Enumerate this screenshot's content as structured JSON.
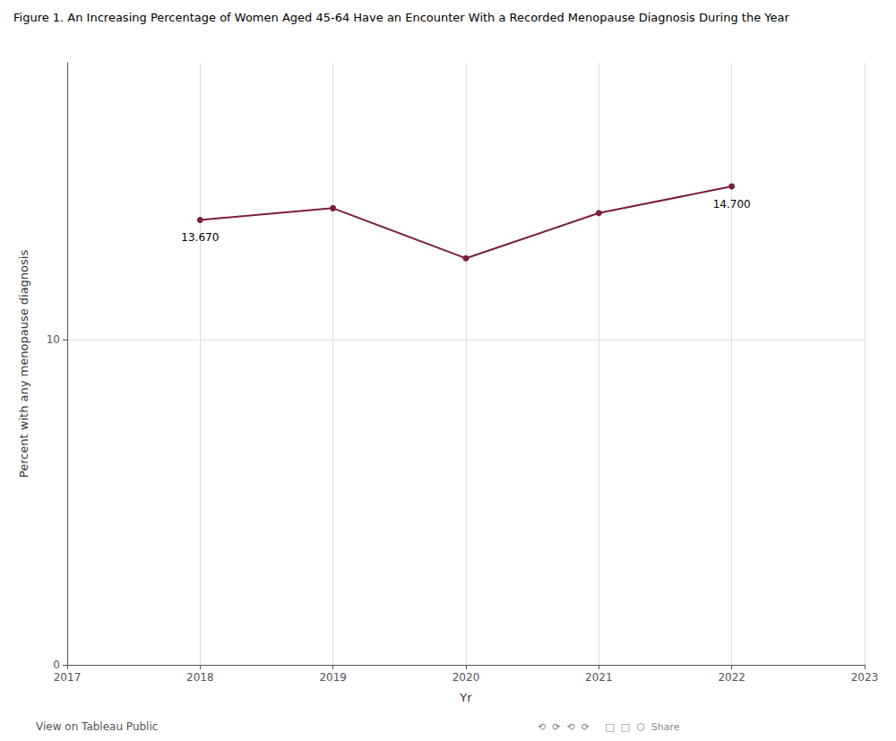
{
  "chart_data": {
    "type": "line",
    "title": "Figure 1. An Increasing Percentage of Women Aged 45-64 Have an Encounter With a Recorded Menopause Diagnosis During the Year",
    "xlabel": "Yr",
    "ylabel": "Percent with any menopause diagnosis",
    "x": [
      2018,
      2019,
      2020,
      2021,
      2022
    ],
    "values": [
      13.67,
      14.03,
      12.49,
      13.88,
      14.7
    ],
    "color": "#7B1F3A",
    "marker": "circle",
    "line_style": "solid",
    "xlim": [
      2017,
      2023
    ],
    "xticks": [
      2017,
      2018,
      2019,
      2020,
      2021,
      2022,
      2023
    ],
    "ylim": [
      0,
      18.5
    ],
    "yticks": [
      0,
      10
    ],
    "grid": true,
    "annotations": [
      {
        "x": 2018,
        "y": 13.67,
        "text": "13.670"
      },
      {
        "x": 2022,
        "y": 14.7,
        "text": "14.700"
      },
      {
        "text": "View on Tableau Public"
      },
      {
        "text": "⟲  ⟳  ⟲  ⟳     □  □  ⬡  Share"
      }
    ]
  }
}
